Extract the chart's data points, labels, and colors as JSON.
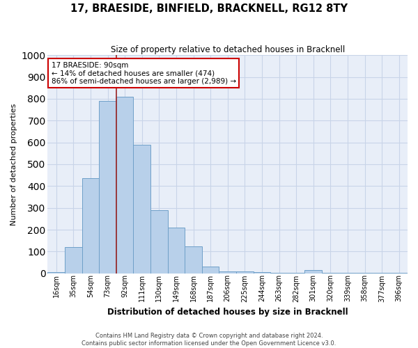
{
  "title": "17, BRAESIDE, BINFIELD, BRACKNELL, RG12 8TY",
  "subtitle": "Size of property relative to detached houses in Bracknell",
  "xlabel": "Distribution of detached houses by size in Bracknell",
  "ylabel": "Number of detached properties",
  "categories": [
    "16sqm",
    "35sqm",
    "54sqm",
    "73sqm",
    "92sqm",
    "111sqm",
    "130sqm",
    "149sqm",
    "168sqm",
    "187sqm",
    "206sqm",
    "225sqm",
    "244sqm",
    "263sqm",
    "282sqm",
    "301sqm",
    "320sqm",
    "339sqm",
    "358sqm",
    "377sqm",
    "396sqm"
  ],
  "values": [
    5,
    122,
    435,
    790,
    810,
    590,
    290,
    210,
    125,
    30,
    10,
    8,
    5,
    3,
    2,
    15,
    2,
    2,
    2,
    2,
    2
  ],
  "bar_color": "#b8d0ea",
  "bar_edge_color": "#6fa0c8",
  "highlight_bar_index": 4,
  "ylim_max": 1000,
  "ytick_interval": 100,
  "annotation_title": "17 BRAESIDE: 90sqm",
  "annotation_line1": "← 14% of detached houses are smaller (474)",
  "annotation_line2": "86% of semi-detached houses are larger (2,989) →",
  "annotation_box_color": "white",
  "annotation_box_edge": "#cc0000",
  "red_line_color": "#9b2222",
  "bg_color": "#e8eef8",
  "grid_color": "#c8d4e8",
  "footer_line1": "Contains HM Land Registry data © Crown copyright and database right 2024.",
  "footer_line2": "Contains public sector information licensed under the Open Government Licence v3.0."
}
